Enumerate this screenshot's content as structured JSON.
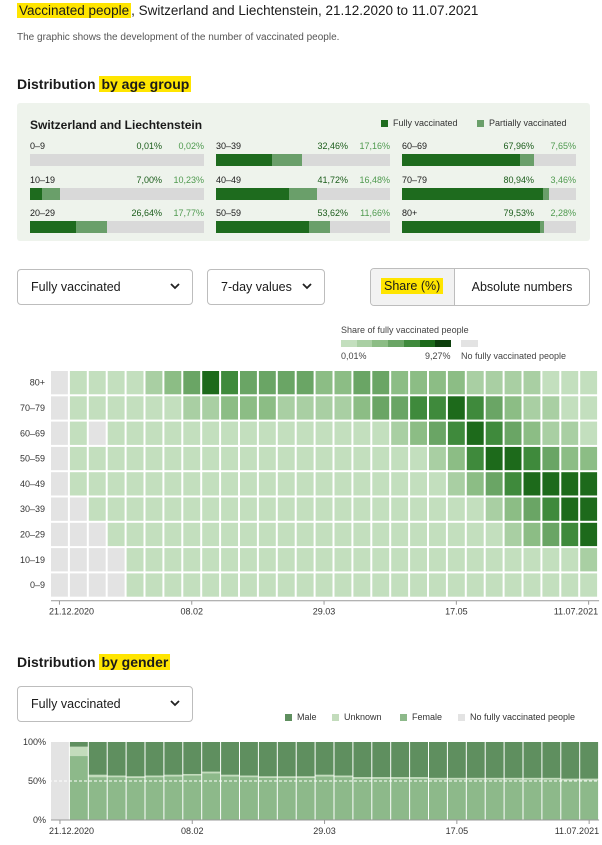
{
  "header": {
    "title_highlight": "Vaccinated people",
    "title_rest": ", Switzerland and Liechtenstein, 21.12.2020 to 11.07.2021",
    "subtitle": "The graphic shows the development of the number of vaccinated people."
  },
  "age_section": {
    "title_prefix": "Distribution ",
    "title_highlight": "by age group",
    "panel_title": "Switzerland and Liechtenstein",
    "legend_full": "Fully vaccinated",
    "legend_partial": "Partially vaccinated",
    "groups": [
      {
        "label": "0–9",
        "full": 0.01,
        "partial": 0.02,
        "full_text": "0,01%",
        "partial_text": "0,02%"
      },
      {
        "label": "10–19",
        "full": 7.0,
        "partial": 10.23,
        "full_text": "7,00%",
        "partial_text": "10,23%"
      },
      {
        "label": "20–29",
        "full": 26.64,
        "partial": 17.77,
        "full_text": "26,64%",
        "partial_text": "17,77%"
      },
      {
        "label": "30–39",
        "full": 32.46,
        "partial": 17.16,
        "full_text": "32,46%",
        "partial_text": "17,16%"
      },
      {
        "label": "40–49",
        "full": 41.72,
        "partial": 16.48,
        "full_text": "41,72%",
        "partial_text": "16,48%"
      },
      {
        "label": "50–59",
        "full": 53.62,
        "partial": 11.66,
        "full_text": "53,62%",
        "partial_text": "11,66%"
      },
      {
        "label": "60–69",
        "full": 67.96,
        "partial": 7.65,
        "full_text": "67,96%",
        "partial_text": "7,65%"
      },
      {
        "label": "70–79",
        "full": 80.94,
        "partial": 3.46,
        "full_text": "80,94%",
        "partial_text": "3,46%"
      },
      {
        "label": "80+",
        "full": 79.53,
        "partial": 2.28,
        "full_text": "79,53%",
        "partial_text": "2,28%"
      }
    ]
  },
  "controls": {
    "measure_select": "Fully vaccinated",
    "period_select": "7-day values",
    "toggle_share": "Share (%)",
    "toggle_absolute": "Absolute numbers"
  },
  "colors": {
    "full": "#1e6b1e",
    "partial": "#6a9f6a",
    "track": "#d9d9d9",
    "no_data": "#e3e3e3",
    "scale": [
      "#c3dfbe",
      "#a9cfa3",
      "#8cbd85",
      "#6aa565",
      "#3f8a3c",
      "#1d6a1b",
      "#0d3f0d"
    ],
    "male": "#5f8f5f",
    "unknown": "#c3dcbc",
    "female": "#8db98a"
  },
  "chart_data": [
    {
      "type": "heatmap",
      "title": "Share of fully vaccinated people",
      "legend_min": "0,01%",
      "legend_max": "9,27%",
      "legend_nodata": "No fully vaccinated people",
      "rows": [
        "80+",
        "70–79",
        "60–69",
        "50–59",
        "40–49",
        "30–39",
        "20–29",
        "10–19",
        "0–9"
      ],
      "x_tick_labels": [
        "21.12.2020",
        "08.02",
        "29.03",
        "17.05",
        "11.07.2021"
      ],
      "x_tick_columns": [
        0,
        7,
        14,
        21,
        28
      ],
      "levels": [
        [
          0,
          1,
          1,
          1,
          1,
          2,
          3,
          4,
          6,
          5,
          4,
          4,
          4,
          4,
          3,
          3,
          4,
          4,
          3,
          3,
          3,
          3,
          2,
          2,
          2,
          2,
          1,
          1,
          1
        ],
        [
          0,
          1,
          1,
          1,
          1,
          1,
          1,
          2,
          2,
          3,
          3,
          3,
          2,
          2,
          2,
          2,
          3,
          4,
          4,
          5,
          5,
          6,
          5,
          4,
          3,
          2,
          2,
          1,
          1
        ],
        [
          0,
          1,
          0,
          1,
          1,
          1,
          1,
          1,
          1,
          1,
          1,
          1,
          1,
          1,
          1,
          1,
          1,
          1,
          2,
          3,
          4,
          5,
          6,
          5,
          4,
          3,
          2,
          2,
          1
        ],
        [
          0,
          1,
          1,
          1,
          1,
          1,
          1,
          1,
          1,
          1,
          1,
          1,
          1,
          1,
          1,
          1,
          1,
          1,
          1,
          1,
          2,
          3,
          5,
          6,
          6,
          5,
          4,
          3,
          3
        ],
        [
          0,
          1,
          1,
          1,
          1,
          1,
          1,
          1,
          1,
          1,
          1,
          1,
          1,
          1,
          1,
          1,
          1,
          1,
          1,
          1,
          1,
          2,
          3,
          4,
          5,
          6,
          6,
          6,
          6
        ],
        [
          0,
          0,
          1,
          1,
          1,
          1,
          1,
          1,
          1,
          1,
          1,
          1,
          1,
          1,
          1,
          1,
          1,
          1,
          1,
          1,
          1,
          1,
          1,
          2,
          3,
          4,
          5,
          6,
          6
        ],
        [
          0,
          0,
          0,
          1,
          1,
          1,
          1,
          1,
          1,
          1,
          1,
          1,
          1,
          1,
          1,
          1,
          1,
          1,
          1,
          1,
          1,
          1,
          1,
          1,
          2,
          3,
          4,
          5,
          6
        ],
        [
          0,
          0,
          0,
          0,
          1,
          1,
          1,
          1,
          1,
          1,
          1,
          1,
          1,
          1,
          1,
          1,
          1,
          1,
          1,
          1,
          1,
          1,
          1,
          1,
          1,
          1,
          1,
          1,
          2
        ],
        [
          0,
          0,
          0,
          0,
          1,
          1,
          1,
          1,
          1,
          1,
          1,
          1,
          1,
          1,
          1,
          1,
          1,
          1,
          1,
          1,
          1,
          1,
          1,
          1,
          1,
          1,
          1,
          1,
          1
        ]
      ]
    },
    {
      "type": "bar",
      "stacked": true,
      "section_title_prefix": "Distribution ",
      "section_title_highlight": "by gender",
      "measure_select": "Fully vaccinated",
      "ylim": [
        0,
        100
      ],
      "y_tick_labels": [
        "100%",
        "50%",
        "0%"
      ],
      "y_tick_values": [
        100,
        50,
        0
      ],
      "x_tick_labels": [
        "21.12.2020",
        "08.02",
        "29.03",
        "17.05",
        "11.07.2021"
      ],
      "x_tick_columns": [
        0,
        7,
        14,
        21,
        28
      ],
      "series_names": [
        "Male",
        "Unknown",
        "Female",
        "No fully vaccinated people"
      ],
      "male": [
        0,
        6,
        42,
        43,
        44,
        43,
        42,
        41,
        38,
        42,
        43,
        44,
        44,
        44,
        42,
        43,
        45,
        45,
        45,
        45,
        46,
        46,
        46,
        46,
        46,
        46,
        46,
        47,
        47
      ],
      "female": [
        0,
        82,
        55,
        55,
        54,
        55,
        56,
        57,
        60,
        56,
        55,
        54,
        54,
        54,
        56,
        55,
        53,
        53,
        53,
        53,
        52,
        52,
        52,
        52,
        52,
        52,
        52,
        51,
        51
      ],
      "unknown": [
        0,
        12,
        3,
        2,
        2,
        2,
        2,
        2,
        2,
        2,
        2,
        2,
        2,
        2,
        2,
        2,
        2,
        2,
        2,
        2,
        2,
        2,
        2,
        2,
        2,
        2,
        2,
        2,
        2
      ],
      "no_data": [
        100,
        0,
        0,
        0,
        0,
        0,
        0,
        0,
        0,
        0,
        0,
        0,
        0,
        0,
        0,
        0,
        0,
        0,
        0,
        0,
        0,
        0,
        0,
        0,
        0,
        0,
        0,
        0,
        0
      ]
    }
  ]
}
